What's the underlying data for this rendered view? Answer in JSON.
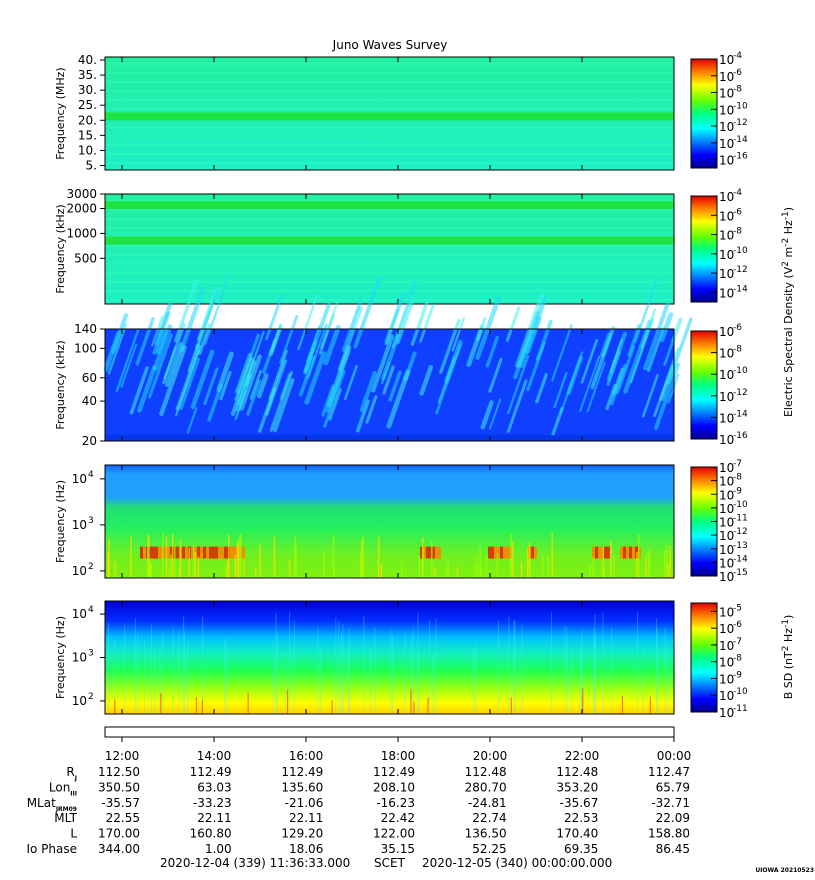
{
  "chart_data": {
    "type": "heatmap",
    "title": "Juno Waves Survey",
    "time_axis": {
      "tick_labels": [
        "12:00",
        "14:00",
        "16:00",
        "18:00",
        "20:00",
        "22:00",
        "00:00"
      ]
    },
    "panels": [
      {
        "ylabel": "Frequency (MHz)",
        "yscale": "linear",
        "ylim": [
          3.5,
          41
        ],
        "ytick_labels": [
          "40.",
          "35.",
          "30.",
          "25.",
          "20.",
          "15.",
          "10.",
          "5."
        ],
        "ytick_values": [
          40,
          35,
          30,
          25,
          20,
          15,
          10,
          5
        ],
        "colorbar": {
          "exponents": [
            "-4",
            "-6",
            "-8",
            "-10",
            "-12",
            "-14",
            "-16"
          ],
          "range": [
            -4,
            -17
          ]
        },
        "palette": "green",
        "bands": [
          21.3
        ]
      },
      {
        "ylabel": "Frequency (kHz)",
        "yscale": "log",
        "ylim": [
          140,
          3000
        ],
        "ytick_labels": [
          "3000",
          "2000",
          "1000",
          "500"
        ],
        "ytick_values": [
          3000,
          2000,
          1000,
          500
        ],
        "colorbar": {
          "exponents": [
            "-4",
            "-6",
            "-8",
            "-10",
            "-12",
            "-14"
          ],
          "range": [
            -4,
            -15
          ]
        },
        "palette": "green",
        "bands": [
          2200,
          820
        ]
      },
      {
        "ylabel": "Frequency (kHz)",
        "yscale": "log",
        "ylim": [
          20,
          140
        ],
        "ytick_labels": [
          "140",
          "100",
          "60",
          "40",
          "20"
        ],
        "ytick_values": [
          140,
          100,
          60,
          40,
          20
        ],
        "colorbar": {
          "exponents": [
            "-6",
            "-8",
            "-10",
            "-12",
            "-14",
            "-16"
          ],
          "range": [
            -6,
            -16
          ]
        },
        "palette": "blue"
      },
      {
        "ylabel": "Frequency (Hz)",
        "yscale": "log",
        "ylim": [
          70,
          20000
        ],
        "ytick_labels": [
          "10",
          "10",
          "10"
        ],
        "ytick_exps": [
          "4",
          "3",
          "2"
        ],
        "ytick_values": [
          10000,
          1000,
          100
        ],
        "colorbar": {
          "exponents": [
            "-7",
            "-8",
            "-9",
            "-10",
            "-11",
            "-12",
            "-13",
            "-14",
            "-15"
          ],
          "range": [
            -7,
            -15
          ]
        },
        "palette": "efield"
      },
      {
        "ylabel": "Frequency (Hz)",
        "yscale": "log",
        "ylim": [
          50,
          20000
        ],
        "ytick_labels": [
          "10",
          "10",
          "10"
        ],
        "ytick_exps": [
          "4",
          "3",
          "2"
        ],
        "ytick_values": [
          10000,
          1000,
          100
        ],
        "colorbar": {
          "exponents": [
            "-5",
            "-6",
            "-7",
            "-8",
            "-9",
            "-10",
            "-11"
          ],
          "range": [
            -4.5,
            -11
          ]
        },
        "palette": "bfield"
      }
    ],
    "colorbar_labels": {
      "electric": "Electric Spectral Density (V",
      "electric_sup1": "2",
      "electric_mid": " m",
      "electric_sup2": "-2",
      "electric_hz": " Hz",
      "electric_sup3": "-1",
      "electric_end": ")",
      "magnetic": "B SD (nT",
      "magnetic_sup1": "2",
      "magnetic_hz": " Hz",
      "magnetic_sup2": "-1",
      "magnetic_end": ")"
    },
    "ephemeris": {
      "rows": [
        {
          "label": "R",
          "sub": "J",
          "values": [
            "112.50",
            "112.49",
            "112.49",
            "112.49",
            "112.48",
            "112.48",
            "112.47"
          ]
        },
        {
          "label": "Lon",
          "sub": "III",
          "values": [
            "350.50",
            "63.03",
            "135.60",
            "208.10",
            "280.70",
            "353.20",
            "65.79"
          ]
        },
        {
          "label": "MLat",
          "sub": "JRM09",
          "values": [
            "-35.57",
            "-33.23",
            "-21.06",
            "-16.23",
            "-24.81",
            "-35.67",
            "-32.71"
          ]
        },
        {
          "label": "MLT",
          "sub": "",
          "values": [
            "22.55",
            "22.11",
            "22.11",
            "22.42",
            "22.74",
            "22.53",
            "22.09"
          ]
        },
        {
          "label": "L",
          "sub": "",
          "values": [
            "170.00",
            "160.80",
            "129.20",
            "122.00",
            "136.50",
            "170.40",
            "158.80"
          ]
        },
        {
          "label": "Io Phase",
          "sub": "",
          "values": [
            "344.00",
            "1.00",
            "18.06",
            "35.15",
            "52.25",
            "69.35",
            "86.45"
          ]
        }
      ]
    },
    "footer": {
      "start": "2020-12-04 (339) 11:36:33.000",
      "mid": "SCET",
      "end": "2020-12-05 (340) 00:00:00.000",
      "stamp": "UIOWA 20210523"
    }
  }
}
